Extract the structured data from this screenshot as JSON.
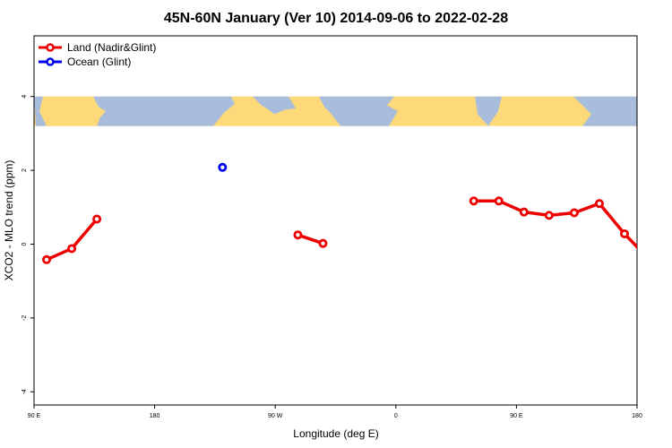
{
  "chart_data": {
    "type": "line",
    "title": "45N-60N January (Ver 10)   2014-09-06 to 2022-02-28",
    "xlabel": "Longitude (deg E)",
    "ylabel": "XCO2 - MLO trend (ppm)",
    "xlim": [
      90,
      450
    ],
    "ylim": [
      -4,
      4
    ],
    "x_ticks": [
      {
        "value": 90,
        "label": "90 E"
      },
      {
        "value": 180,
        "label": "180"
      },
      {
        "value": 270,
        "label": "90 W"
      },
      {
        "value": 360,
        "label": "0"
      },
      {
        "value": 450,
        "label": "90 E"
      },
      {
        "value": 540,
        "label": "180"
      }
    ],
    "y_ticks": [
      {
        "value": -4,
        "label": "-4"
      },
      {
        "value": -2,
        "label": "-2"
      },
      {
        "value": 0,
        "label": "0"
      },
      {
        "value": 2,
        "label": "2"
      },
      {
        "value": 4,
        "label": "4"
      }
    ],
    "map_band": {
      "y_range": [
        3.2,
        4.0
      ],
      "land_color": "#fed97a",
      "ocean_color": "#a8bcdc"
    },
    "legend": {
      "position": "top-left"
    },
    "series": [
      {
        "name": "Land (Nadir&Glint)",
        "color": "#ee0000",
        "segments": [
          {
            "x": [
              97.5,
              112.5,
              127.5
            ],
            "y": [
              -0.42,
              -0.12,
              0.68
            ]
          },
          {
            "x": [
              247.5,
              262.5
            ],
            "y": [
              0.25,
              0.02
            ]
          },
          {
            "x": [
              352.5,
              367.5,
              382.5,
              397.5,
              412.5,
              427.5,
              442.5,
              457.5,
              472.5,
              487.5
            ],
            "y": [
              1.17,
              1.17,
              0.87,
              0.78,
              0.85,
              1.1,
              0.28,
              -0.43,
              -0.12,
              0.68
            ]
          }
        ]
      },
      {
        "name": "Ocean (Glint)",
        "color": "#0000ee",
        "segments": [
          {
            "x": [
              202.5
            ],
            "y": [
              2.08
            ]
          }
        ]
      }
    ]
  }
}
